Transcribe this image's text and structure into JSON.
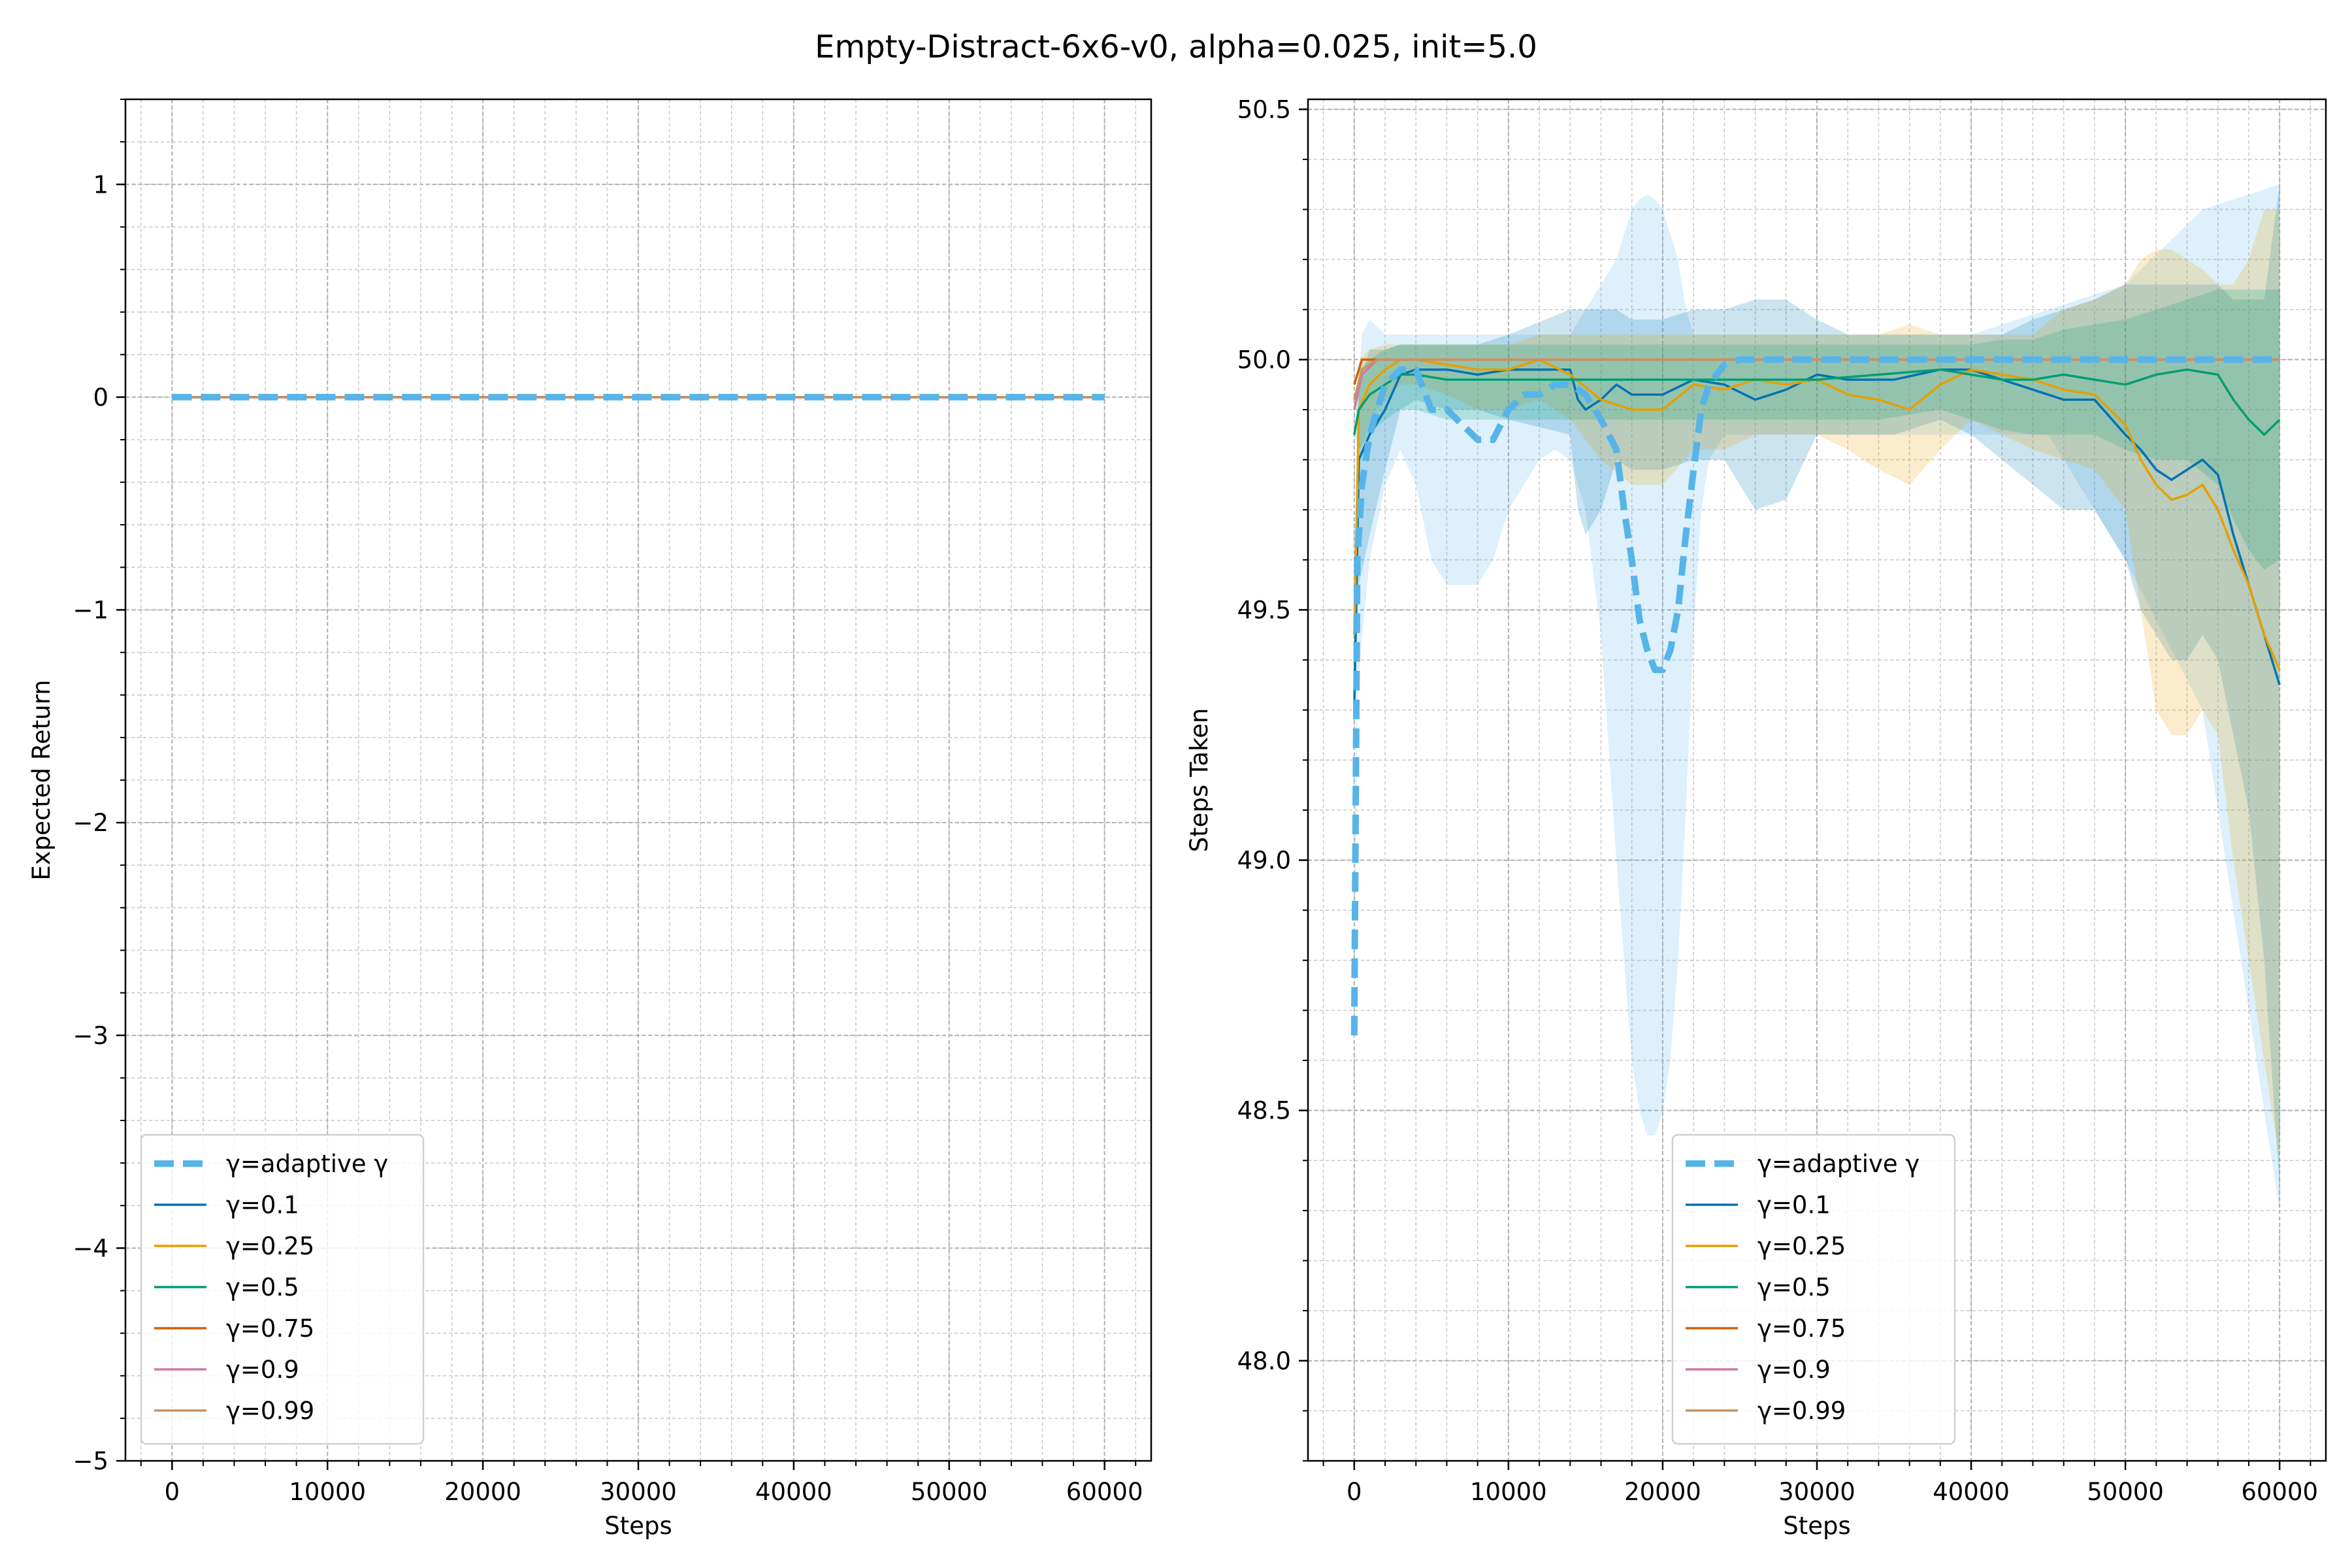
{
  "figure": {
    "title": "Empty-Distract-6x6-v0, alpha=0.025, init=5.0"
  },
  "chart_data": [
    {
      "type": "line",
      "xlabel": "Steps",
      "ylabel": "Expected Return",
      "xlim": [
        -3000,
        63000
      ],
      "ylim": [
        -5,
        1.4
      ],
      "xticks": [
        0,
        10000,
        20000,
        30000,
        40000,
        50000,
        60000
      ],
      "xtick_labels": [
        "0",
        "10000",
        "20000",
        "30000",
        "40000",
        "50000",
        "60000"
      ],
      "yticks": [
        -5,
        -4,
        -3,
        -2,
        -1,
        0,
        1
      ],
      "ytick_labels": [
        "−5",
        "−4",
        "−3",
        "−2",
        "−1",
        "0",
        "1"
      ],
      "grid": true,
      "legend_position": "lower-left",
      "series": [
        {
          "name": "γ=adaptive γ",
          "color": "#56b4e9",
          "dashed": true,
          "x": [
            0,
            60000
          ],
          "y": [
            0,
            0
          ]
        },
        {
          "name": "γ=0.1",
          "color": "#0072b2",
          "x": [
            0,
            60000
          ],
          "y": [
            0,
            0
          ]
        },
        {
          "name": "γ=0.25",
          "color": "#e69f00",
          "x": [
            0,
            60000
          ],
          "y": [
            0,
            0
          ]
        },
        {
          "name": "γ=0.5",
          "color": "#009e73",
          "x": [
            0,
            60000
          ],
          "y": [
            0,
            0
          ]
        },
        {
          "name": "γ=0.75",
          "color": "#d55e00",
          "x": [
            0,
            60000
          ],
          "y": [
            0,
            0
          ]
        },
        {
          "name": "γ=0.9",
          "color": "#cc79a7",
          "x": [
            0,
            60000
          ],
          "y": [
            0,
            0
          ]
        },
        {
          "name": "γ=0.99",
          "color": "#ca9161",
          "x": [
            0,
            60000
          ],
          "y": [
            0,
            0
          ]
        }
      ]
    },
    {
      "type": "line",
      "xlabel": "Steps",
      "ylabel": "Steps Taken",
      "xlim": [
        -3000,
        63000
      ],
      "ylim": [
        47.8,
        50.52
      ],
      "xticks": [
        0,
        10000,
        20000,
        30000,
        40000,
        50000,
        60000
      ],
      "xtick_labels": [
        "0",
        "10000",
        "20000",
        "30000",
        "40000",
        "50000",
        "60000"
      ],
      "yticks": [
        48.0,
        48.5,
        49.0,
        49.5,
        50.0,
        50.5
      ],
      "ytick_labels": [
        "48.0",
        "48.5",
        "49.0",
        "49.5",
        "50.0",
        "50.5"
      ],
      "grid": true,
      "legend_position": "lower-center",
      "series": [
        {
          "name": "γ=adaptive γ",
          "color": "#56b4e9",
          "dashed": true,
          "x": [
            0,
            200,
            500,
            1000,
            2000,
            3000,
            4000,
            5000,
            6000,
            7000,
            8000,
            9000,
            10000,
            11000,
            12000,
            13000,
            14000,
            15000,
            16000,
            17000,
            17500,
            18000,
            18500,
            19000,
            19500,
            20000,
            20500,
            21000,
            21500,
            22000,
            22500,
            23000,
            24000,
            25000,
            26000,
            30000,
            35000,
            40000,
            45000,
            50000,
            55000,
            60000
          ],
          "y": [
            48.65,
            49.6,
            49.75,
            49.85,
            49.95,
            49.98,
            49.98,
            49.9,
            49.9,
            49.87,
            49.84,
            49.84,
            49.9,
            49.93,
            49.93,
            49.95,
            49.95,
            49.93,
            49.88,
            49.82,
            49.7,
            49.6,
            49.48,
            49.42,
            49.38,
            49.38,
            49.42,
            49.5,
            49.65,
            49.78,
            49.9,
            49.95,
            49.99,
            50.0,
            50.0,
            50.0,
            50.0,
            50.0,
            50.0,
            50.0,
            50.0,
            50.0
          ],
          "band_lower": [
            48.65,
            49.3,
            49.45,
            49.6,
            49.75,
            49.82,
            49.75,
            49.6,
            49.55,
            49.55,
            49.55,
            49.6,
            49.7,
            49.75,
            49.8,
            49.82,
            49.8,
            49.7,
            49.45,
            49.0,
            48.8,
            48.6,
            48.5,
            48.45,
            48.45,
            48.5,
            48.6,
            48.8,
            49.1,
            49.45,
            49.7,
            49.8,
            49.85,
            49.85,
            49.85,
            49.85,
            49.85,
            49.85,
            49.85,
            49.6,
            49.3,
            48.3
          ],
          "band_upper": [
            48.65,
            49.9,
            50.05,
            50.08,
            50.05,
            50.05,
            50.05,
            50.05,
            50.05,
            50.05,
            50.05,
            50.05,
            50.05,
            50.05,
            50.05,
            50.05,
            50.05,
            50.1,
            50.15,
            50.2,
            50.25,
            50.3,
            50.32,
            50.33,
            50.32,
            50.3,
            50.25,
            50.2,
            50.1,
            50.05,
            50.05,
            50.05,
            50.05,
            50.05,
            50.05,
            50.05,
            50.05,
            50.05,
            50.1,
            50.15,
            50.3,
            50.35
          ]
        },
        {
          "name": "γ=0.1",
          "color": "#0072b2",
          "x": [
            0,
            300,
            1000,
            2000,
            3000,
            4000,
            6000,
            8000,
            10000,
            14000,
            14500,
            15000,
            16000,
            17000,
            18000,
            20000,
            22000,
            24000,
            26000,
            28000,
            30000,
            32000,
            35000,
            38000,
            40000,
            42000,
            44000,
            46000,
            48000,
            50000,
            51000,
            52000,
            53000,
            54000,
            55000,
            56000,
            57000,
            58000,
            59000,
            60000
          ],
          "y": [
            49.3,
            49.8,
            49.85,
            49.9,
            49.97,
            49.98,
            49.98,
            49.97,
            49.98,
            49.98,
            49.92,
            49.9,
            49.92,
            49.95,
            49.93,
            49.93,
            49.96,
            49.95,
            49.92,
            49.94,
            49.97,
            49.96,
            49.96,
            49.98,
            49.98,
            49.96,
            49.94,
            49.92,
            49.92,
            49.85,
            49.82,
            49.78,
            49.76,
            49.78,
            49.8,
            49.77,
            49.65,
            49.55,
            49.45,
            49.35
          ],
          "band_lower": [
            49.3,
            49.55,
            49.65,
            49.78,
            49.9,
            49.92,
            49.9,
            49.9,
            49.88,
            49.85,
            49.7,
            49.65,
            49.7,
            49.8,
            49.78,
            49.78,
            49.8,
            49.8,
            49.7,
            49.72,
            49.85,
            49.85,
            49.85,
            49.88,
            49.85,
            49.8,
            49.75,
            49.7,
            49.7,
            49.6,
            49.5,
            49.45,
            49.4,
            49.4,
            49.45,
            49.4,
            49.25,
            49.1,
            48.8,
            48.35
          ],
          "band_upper": [
            49.3,
            49.95,
            50.02,
            50.02,
            50.03,
            50.03,
            50.03,
            50.03,
            50.05,
            50.1,
            50.1,
            50.1,
            50.1,
            50.1,
            50.08,
            50.08,
            50.1,
            50.1,
            50.12,
            50.12,
            50.08,
            50.05,
            50.05,
            50.05,
            50.05,
            50.05,
            50.08,
            50.1,
            50.12,
            50.15,
            50.15,
            50.15,
            50.15,
            50.15,
            50.15,
            50.15,
            50.12,
            50.12,
            50.12,
            50.35
          ]
        },
        {
          "name": "γ=0.25",
          "color": "#e69f00",
          "x": [
            0,
            300,
            1000,
            2000,
            3000,
            4000,
            6000,
            8000,
            10000,
            12000,
            14000,
            16000,
            18000,
            20000,
            22000,
            24000,
            26000,
            28000,
            30000,
            32000,
            34000,
            36000,
            38000,
            40000,
            42000,
            44000,
            46000,
            48000,
            50000,
            51000,
            52000,
            53000,
            54000,
            55000,
            56000,
            57000,
            58000,
            59000,
            60000
          ],
          "y": [
            49.45,
            49.9,
            49.95,
            49.98,
            50.0,
            50.0,
            49.99,
            49.98,
            49.98,
            50.0,
            49.97,
            49.92,
            49.9,
            49.9,
            49.95,
            49.94,
            49.96,
            49.95,
            49.96,
            49.93,
            49.92,
            49.9,
            49.95,
            49.98,
            49.97,
            49.96,
            49.94,
            49.93,
            49.87,
            49.8,
            49.75,
            49.72,
            49.73,
            49.75,
            49.7,
            49.62,
            49.55,
            49.45,
            49.38
          ],
          "band_lower": [
            49.45,
            49.8,
            49.88,
            49.92,
            49.95,
            49.95,
            49.93,
            49.9,
            49.9,
            49.92,
            49.88,
            49.8,
            49.75,
            49.75,
            49.82,
            49.82,
            49.85,
            49.85,
            49.85,
            49.82,
            49.78,
            49.75,
            49.82,
            49.88,
            49.85,
            49.82,
            49.8,
            49.78,
            49.7,
            49.5,
            49.3,
            49.25,
            49.25,
            49.3,
            49.25,
            49.0,
            48.8,
            48.6,
            48.4
          ],
          "band_upper": [
            49.45,
            50.0,
            50.02,
            50.03,
            50.03,
            50.03,
            50.03,
            50.03,
            50.03,
            50.05,
            50.05,
            50.05,
            50.05,
            50.05,
            50.05,
            50.05,
            50.05,
            50.05,
            50.05,
            50.05,
            50.05,
            50.07,
            50.05,
            50.05,
            50.05,
            50.05,
            50.1,
            50.12,
            50.15,
            50.2,
            50.22,
            50.22,
            50.2,
            50.18,
            50.15,
            50.15,
            50.2,
            50.3,
            50.3
          ]
        },
        {
          "name": "γ=0.5",
          "color": "#009e73",
          "x": [
            0,
            300,
            1000,
            2000,
            3000,
            4000,
            6000,
            10000,
            14000,
            18000,
            22000,
            26000,
            30000,
            34000,
            38000,
            40000,
            42000,
            44000,
            46000,
            48000,
            50000,
            52000,
            54000,
            56000,
            57000,
            58000,
            59000,
            60000
          ],
          "y": [
            49.85,
            49.9,
            49.93,
            49.95,
            49.97,
            49.97,
            49.96,
            49.96,
            49.96,
            49.96,
            49.96,
            49.96,
            49.96,
            49.97,
            49.98,
            49.97,
            49.96,
            49.96,
            49.97,
            49.96,
            49.95,
            49.97,
            49.98,
            49.97,
            49.92,
            49.88,
            49.85,
            49.88
          ],
          "band_lower": [
            49.85,
            49.82,
            49.85,
            49.88,
            49.9,
            49.9,
            49.88,
            49.88,
            49.88,
            49.88,
            49.88,
            49.88,
            49.88,
            49.88,
            49.9,
            49.88,
            49.86,
            49.85,
            49.85,
            49.85,
            49.82,
            49.8,
            49.8,
            49.75,
            49.68,
            49.62,
            49.58,
            49.6
          ],
          "band_upper": [
            49.85,
            49.98,
            50.0,
            50.02,
            50.03,
            50.03,
            50.03,
            50.03,
            50.03,
            50.03,
            50.03,
            50.03,
            50.03,
            50.03,
            50.03,
            50.03,
            50.04,
            50.04,
            50.06,
            50.07,
            50.08,
            50.1,
            50.12,
            50.14,
            50.14,
            50.14,
            50.14,
            50.14
          ]
        },
        {
          "name": "γ=0.75",
          "color": "#d55e00",
          "x": [
            0,
            500,
            1500,
            3000,
            60000
          ],
          "y": [
            49.95,
            50.0,
            50.0,
            50.0,
            50.0
          ]
        },
        {
          "name": "γ=0.9",
          "color": "#cc79a7",
          "x": [
            0,
            500,
            1500,
            3000,
            60000
          ],
          "y": [
            49.9,
            49.97,
            50.0,
            50.0,
            50.0
          ]
        },
        {
          "name": "γ=0.99",
          "color": "#ca9161",
          "x": [
            0,
            500,
            1500,
            3000,
            60000
          ],
          "y": [
            49.92,
            49.98,
            50.0,
            50.0,
            50.0
          ]
        }
      ]
    }
  ]
}
